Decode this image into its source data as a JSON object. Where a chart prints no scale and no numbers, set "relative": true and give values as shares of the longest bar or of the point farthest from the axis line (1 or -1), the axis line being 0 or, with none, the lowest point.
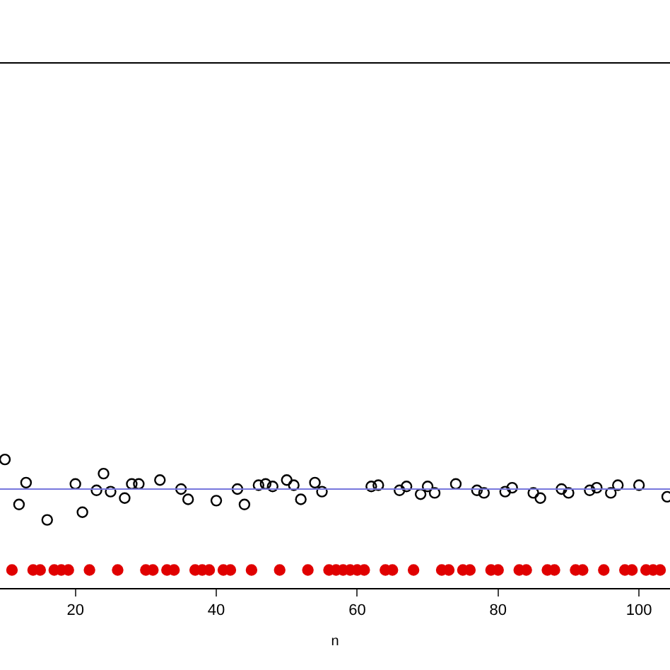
{
  "chart_data": {
    "type": "scatter",
    "relative": true,
    "xlabel": "n",
    "xlim": [
      9.3,
      104.4
    ],
    "xticks": [
      20,
      40,
      60,
      80,
      100
    ],
    "tick_labels": "x",
    "grid": false,
    "marker": "circle",
    "series": [
      {
        "color": "#000000",
        "x": [
          10,
          12,
          13,
          16,
          20,
          21,
          23,
          24,
          25,
          27,
          28,
          29,
          32,
          35,
          36,
          40,
          43,
          44,
          46,
          47,
          48,
          50,
          51,
          52,
          54,
          55,
          62,
          63,
          66,
          67,
          69,
          70,
          71,
          74,
          77,
          78,
          81,
          82,
          85,
          86,
          89,
          90,
          93,
          94,
          96,
          97,
          100,
          104
        ],
        "values": [
          1.0,
          0.65,
          0.82,
          0.53,
          0.81,
          0.59,
          0.76,
          0.89,
          0.75,
          0.7,
          0.81,
          0.81,
          0.84,
          0.77,
          0.69,
          0.68,
          0.77,
          0.65,
          0.8,
          0.81,
          0.79,
          0.84,
          0.8,
          0.69,
          0.82,
          0.75,
          0.79,
          0.8,
          0.76,
          0.79,
          0.73,
          0.79,
          0.74,
          0.81,
          0.76,
          0.74,
          0.75,
          0.78,
          0.74,
          0.7,
          0.77,
          0.74,
          0.76,
          0.78,
          0.74,
          0.8,
          0.8,
          0.71
        ]
      },
      {
        "color": "#e00000",
        "x": [
          11,
          14,
          15,
          17,
          18,
          19,
          22,
          26,
          30,
          31,
          33,
          34,
          37,
          38,
          39,
          41,
          42,
          45,
          49,
          53,
          56,
          57,
          58,
          59,
          60,
          61,
          64,
          65,
          68,
          72,
          73,
          75,
          76,
          79,
          80,
          83,
          84,
          87,
          88,
          91,
          92,
          95,
          98,
          99,
          101,
          102,
          103
        ],
        "values": [
          0.14,
          0.14,
          0.14,
          0.14,
          0.14,
          0.14,
          0.14,
          0.14,
          0.14,
          0.14,
          0.14,
          0.14,
          0.14,
          0.14,
          0.14,
          0.14,
          0.14,
          0.14,
          0.14,
          0.14,
          0.14,
          0.14,
          0.14,
          0.14,
          0.14,
          0.14,
          0.14,
          0.14,
          0.14,
          0.14,
          0.14,
          0.14,
          0.14,
          0.14,
          0.14,
          0.14,
          0.14,
          0.14,
          0.14,
          0.14,
          0.14,
          0.14,
          0.14,
          0.14,
          0.14,
          0.14,
          0.14
        ]
      }
    ],
    "ref_lines": [
      {
        "axis": "y",
        "value": 0.77,
        "color": "#7777dd"
      }
    ]
  }
}
